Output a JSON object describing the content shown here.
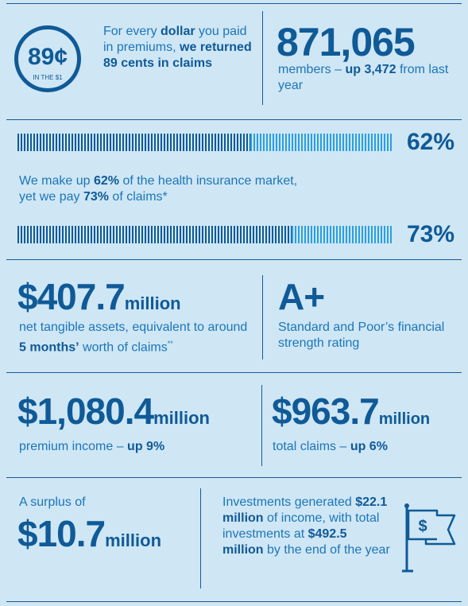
{
  "dollar": {
    "circle_value": "89¢",
    "circle_sub": "IN THE $1",
    "text_1": "For every ",
    "text_2": "dollar",
    "text_3": " you paid in premiums, ",
    "text_4": "we returned 89 cents in claims"
  },
  "members": {
    "value": "871,065",
    "text_1": "members – ",
    "text_2": "up 3,472",
    "text_3": " from last year"
  },
  "market": {
    "share_pct": "62%",
    "share_fraction": 0.62,
    "text_1": "We make up ",
    "text_2": "62%",
    "text_3": " of the health insurance market, yet we pay ",
    "text_4": "73%",
    "text_5": " of claims*",
    "claims_pct": "73%",
    "claims_fraction": 0.73
  },
  "assets": {
    "value": "$407.7",
    "unit": "million",
    "text_1": "net tangible assets, equivalent to around ",
    "text_2": "5 months’",
    "text_3": " worth of claims",
    "footnote": "**"
  },
  "rating": {
    "value": "A+",
    "text": "Standard and Poor’s financial strength rating"
  },
  "premium": {
    "value": "$1,080.4",
    "unit": "million",
    "text_1": "premium income – ",
    "text_2": "up 9%"
  },
  "claims": {
    "value": "$963.7",
    "unit": "million",
    "text_1": "total claims – ",
    "text_2": "up 6%"
  },
  "surplus": {
    "label": "A surplus of",
    "value": "$10.7",
    "unit": "million"
  },
  "investments": {
    "text_1": "Investments generated ",
    "text_2": "$22.1 million",
    "text_3": " of income, with total investments at ",
    "text_4": "$492.5 million",
    "text_5": " by the end of the year",
    "icon": "dollar-flag-icon"
  }
}
